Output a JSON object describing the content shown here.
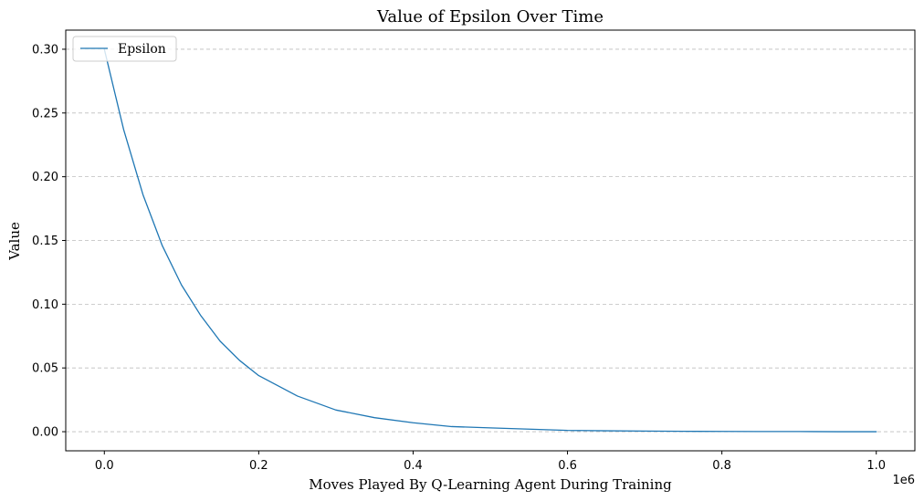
{
  "chart_data": {
    "type": "line",
    "title": "Value of Epsilon Over Time",
    "xlabel": "Moves Played By Q-Learning Agent During Training",
    "ylabel": "Value",
    "x_offset_label": "1e6",
    "xlim": [
      -0.05,
      1.05
    ],
    "ylim": [
      -0.015,
      0.315
    ],
    "x_ticks": [
      0.0,
      0.2,
      0.4,
      0.6,
      0.8,
      1.0
    ],
    "x_tick_labels": [
      "0.0",
      "0.2",
      "0.4",
      "0.6",
      "0.8",
      "1.0"
    ],
    "y_ticks": [
      0.0,
      0.05,
      0.1,
      0.15,
      0.2,
      0.25,
      0.3
    ],
    "y_tick_labels": [
      "0.00",
      "0.05",
      "0.10",
      "0.15",
      "0.20",
      "0.25",
      "0.30"
    ],
    "grid": "horizontal dashed",
    "legend_position": "top-left",
    "series": [
      {
        "name": "Epsilon",
        "color": "#1f77b4",
        "x": [
          0.0,
          0.025,
          0.05,
          0.075,
          0.1,
          0.125,
          0.15,
          0.175,
          0.2,
          0.25,
          0.3,
          0.35,
          0.4,
          0.45,
          0.5,
          0.55,
          0.6,
          0.65,
          0.7,
          0.75,
          0.8,
          0.85,
          0.9,
          0.95,
          1.0
        ],
        "values": [
          0.3,
          0.237,
          0.186,
          0.146,
          0.115,
          0.091,
          0.071,
          0.056,
          0.044,
          0.028,
          0.017,
          0.011,
          0.007,
          0.004,
          0.003,
          0.002,
          0.001,
          0.0007,
          0.0005,
          0.0003,
          0.0002,
          0.0001,
          0.0001,
          0.0,
          0.0
        ]
      }
    ]
  }
}
